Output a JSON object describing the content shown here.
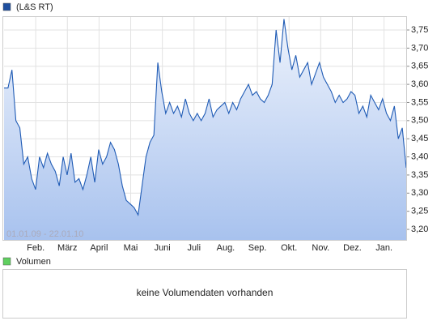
{
  "chart_data": {
    "type": "area",
    "date_range": "01.01.09 - 22.01.10",
    "x_labels": [
      "Feb.",
      "März",
      "April",
      "Mai",
      "Juni",
      "Juli",
      "Aug.",
      "Sep.",
      "Okt.",
      "Nov.",
      "Dez.",
      "Jan."
    ],
    "series": [
      {
        "name": "(L&S RT)",
        "color": "#1f5bb5",
        "values": [
          3.59,
          3.59,
          3.64,
          3.5,
          3.48,
          3.38,
          3.4,
          3.34,
          3.31,
          3.4,
          3.37,
          3.41,
          3.38,
          3.36,
          3.32,
          3.4,
          3.35,
          3.41,
          3.33,
          3.34,
          3.31,
          3.35,
          3.4,
          3.33,
          3.42,
          3.38,
          3.4,
          3.44,
          3.42,
          3.38,
          3.32,
          3.28,
          3.27,
          3.26,
          3.24,
          3.32,
          3.4,
          3.44,
          3.46,
          3.66,
          3.58,
          3.52,
          3.55,
          3.52,
          3.54,
          3.51,
          3.56,
          3.52,
          3.5,
          3.52,
          3.5,
          3.52,
          3.56,
          3.51,
          3.53,
          3.54,
          3.55,
          3.52,
          3.55,
          3.53,
          3.56,
          3.58,
          3.6,
          3.57,
          3.58,
          3.56,
          3.55,
          3.57,
          3.6,
          3.75,
          3.66,
          3.78,
          3.7,
          3.64,
          3.68,
          3.62,
          3.64,
          3.66,
          3.6,
          3.63,
          3.66,
          3.62,
          3.6,
          3.58,
          3.55,
          3.57,
          3.55,
          3.56,
          3.58,
          3.57,
          3.52,
          3.54,
          3.51,
          3.57,
          3.55,
          3.53,
          3.56,
          3.52,
          3.5,
          3.54,
          3.45,
          3.48,
          3.37
        ]
      }
    ],
    "ylim": [
      3.171,
      3.788
    ],
    "yticks": [
      {
        "value": 3.2,
        "label": "3,20"
      },
      {
        "value": 3.25,
        "label": "3,25"
      },
      {
        "value": 3.3,
        "label": "3,30"
      },
      {
        "value": 3.35,
        "label": "3,35"
      },
      {
        "value": 3.4,
        "label": "3,40"
      },
      {
        "value": 3.45,
        "label": "3,45"
      },
      {
        "value": 3.5,
        "label": "3,50"
      },
      {
        "value": 3.55,
        "label": "3,55"
      },
      {
        "value": 3.6,
        "label": "3,60"
      },
      {
        "value": 3.65,
        "label": "3,65"
      },
      {
        "value": 3.7,
        "label": "3,70"
      },
      {
        "value": 3.75,
        "label": "3,75"
      }
    ],
    "grid": true
  },
  "volume": {
    "legend": "Volumen",
    "message": "keine Volumendaten vorhanden"
  }
}
